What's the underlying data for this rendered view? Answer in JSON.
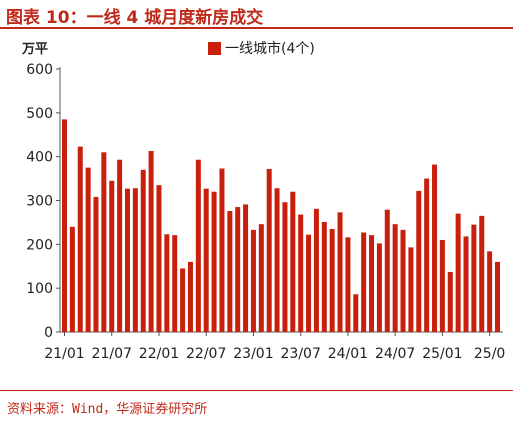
{
  "header": {
    "title": "图表 10：一线 4 城月度新房成交"
  },
  "footer": {
    "source": "资料来源：Wind，华源证券研究所"
  },
  "chart_data": {
    "type": "bar",
    "ylabel": "万平",
    "xlabel": "",
    "ylim": [
      0,
      600
    ],
    "yticks": [
      0,
      100,
      200,
      300,
      400,
      500,
      600
    ],
    "grid": false,
    "legend_position": "top-center",
    "bar_color": "#c9200e",
    "series": [
      {
        "name": "一线城市(4个)",
        "values": [
          485,
          240,
          423,
          375,
          308,
          410,
          345,
          393,
          327,
          328,
          370,
          413,
          335,
          223,
          221,
          145,
          160,
          393,
          327,
          320,
          373,
          276,
          285,
          291,
          233,
          246,
          372,
          328,
          296,
          320,
          268,
          222,
          281,
          251,
          235,
          273,
          216,
          86,
          227,
          221,
          202,
          279,
          246,
          233,
          193,
          322,
          350,
          382,
          210,
          137,
          270,
          218,
          245,
          265,
          184,
          160
        ]
      }
    ],
    "xtick_labels": [
      "21/01",
      "21/07",
      "22/01",
      "22/07",
      "23/01",
      "23/07",
      "24/01",
      "24/07",
      "25/01",
      "25/0"
    ],
    "xtick_indices": [
      0,
      6,
      12,
      18,
      24,
      30,
      36,
      42,
      48,
      54
    ]
  }
}
